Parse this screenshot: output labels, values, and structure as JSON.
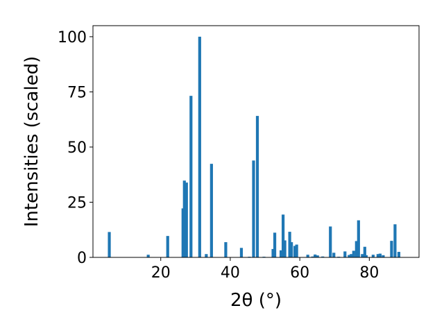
{
  "chart_data": {
    "type": "bar",
    "title": "",
    "xlabel": "2θ (°)",
    "ylabel": "Intensities (scaled)",
    "xlim": [
      0.5,
      94.3
    ],
    "ylim": [
      0,
      105
    ],
    "xticks": [
      20,
      40,
      60,
      80
    ],
    "yticks": [
      0,
      25,
      50,
      75,
      100
    ],
    "grid": false,
    "bar_color": "#1f77b4",
    "x": [
      5.2,
      16.4,
      22.0,
      26.4,
      26.8,
      27.4,
      28.7,
      31.2,
      33.1,
      34.6,
      38.7,
      43.2,
      45.5,
      46.7,
      47.8,
      49.7,
      52.3,
      52.8,
      54.6,
      55.2,
      55.7,
      57.1,
      57.6,
      58.6,
      59.1,
      62.3,
      63.7,
      64.4,
      65.1,
      66.6,
      68.8,
      69.8,
      71.2,
      73.0,
      74.2,
      74.8,
      75.5,
      76.3,
      76.9,
      78.0,
      78.7,
      79.1,
      81.1,
      82.5,
      83.1,
      84.0,
      86.4,
      87.4,
      88.5
    ],
    "values": [
      11.5,
      1.2,
      9.7,
      22.2,
      34.8,
      33.9,
      73.2,
      100,
      1.5,
      42.4,
      6.9,
      4.3,
      0.3,
      43.9,
      64.1,
      0.3,
      3.8,
      11.2,
      3.2,
      19.4,
      7.7,
      11.6,
      6.9,
      5.2,
      5.8,
      1.2,
      0.4,
      1.3,
      0.9,
      0.4,
      14.0,
      2.1,
      0.3,
      2.7,
      1.1,
      1.5,
      3.0,
      7.4,
      16.8,
      1.5,
      4.8,
      1.0,
      1.2,
      1.5,
      1.7,
      1.0,
      7.5,
      15.0,
      2.5
    ]
  }
}
